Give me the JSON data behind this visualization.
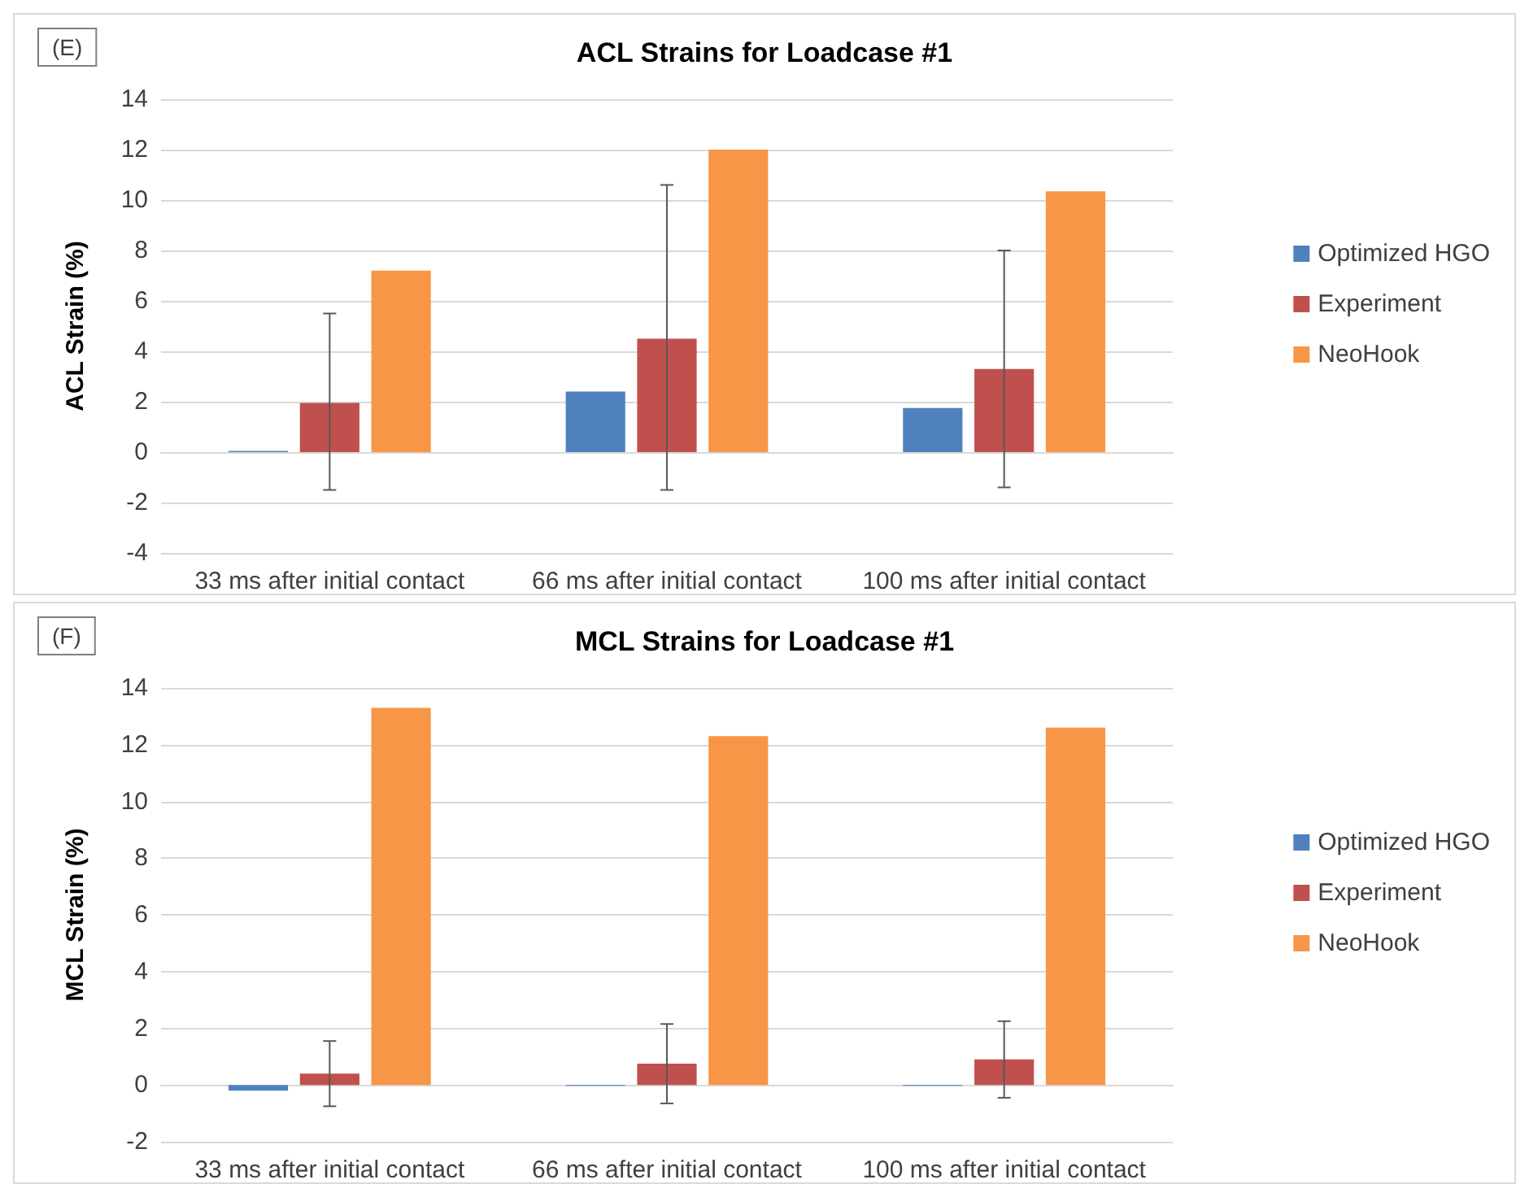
{
  "chart_data": [
    {
      "type": "bar",
      "title": "ACL Strains for Loadcase #1",
      "ylabel": "ACL Strain (%)",
      "annotations": [
        "(E)"
      ],
      "categories": [
        "33 ms after initial contact",
        "66 ms after initial contact",
        "100 ms after initial contact"
      ],
      "series": [
        {
          "name": "Optimized HGO",
          "color": "#4f81bd",
          "values": [
            0.05,
            2.4,
            1.75
          ]
        },
        {
          "name": "Experiment",
          "color": "#c0504d",
          "values": [
            1.95,
            4.5,
            3.3
          ],
          "errors": [
            [
              -1.5,
              5.5
            ],
            [
              -1.5,
              10.6
            ],
            [
              -1.4,
              8.0
            ]
          ]
        },
        {
          "name": "NeoHook",
          "color": "#f79646",
          "values": [
            7.2,
            12.0,
            10.35
          ]
        }
      ],
      "ylim": [
        -4,
        14
      ],
      "yticks": [
        -4,
        -2,
        0,
        2,
        4,
        6,
        8,
        10,
        12,
        14
      ],
      "grid": "y",
      "legend": "right"
    },
    {
      "type": "bar",
      "title": "MCL Strains for Loadcase #1",
      "ylabel": "MCL Strain (%)",
      "annotations": [
        "(F)"
      ],
      "categories": [
        "33 ms after initial contact",
        "66 ms after initial contact",
        "100 ms after initial contact"
      ],
      "series": [
        {
          "name": "Optimized HGO",
          "color": "#4f81bd",
          "values": [
            -0.2,
            -0.03,
            -0.03
          ]
        },
        {
          "name": "Experiment",
          "color": "#c0504d",
          "values": [
            0.4,
            0.75,
            0.9
          ],
          "errors": [
            [
              -0.75,
              1.55
            ],
            [
              -0.65,
              2.15
            ],
            [
              -0.45,
              2.25
            ]
          ]
        },
        {
          "name": "NeoHook",
          "color": "#f79646",
          "values": [
            13.3,
            12.3,
            12.6
          ]
        }
      ],
      "ylim": [
        -2,
        14
      ],
      "yticks": [
        -2,
        0,
        2,
        4,
        6,
        8,
        10,
        12,
        14
      ],
      "grid": "y",
      "legend": "right"
    }
  ]
}
